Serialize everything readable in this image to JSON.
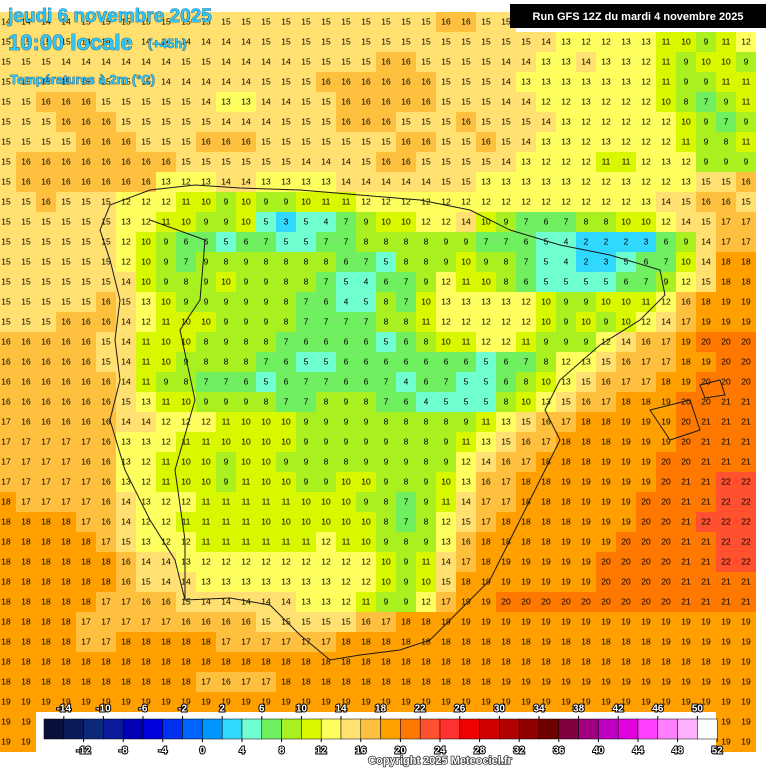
{
  "header": {
    "date": "jeudi 6 novembre 2025",
    "time": "10:00 locale",
    "lead": "(+45h)",
    "variable": "Températures à 2m (°C)",
    "run": "Run GFS 12Z du mardi 4 novembre 2025"
  },
  "footer": {
    "copyright": "Copyright 2025 Meteociel.fr"
  },
  "colorbar": {
    "ticks": [
      -14,
      -12,
      -10,
      -8,
      -6,
      -4,
      -2,
      0,
      2,
      4,
      6,
      8,
      10,
      12,
      14,
      16,
      18,
      20,
      22,
      24,
      26,
      28,
      30,
      32,
      34,
      36,
      38,
      40,
      42,
      44,
      46,
      48,
      50,
      52
    ],
    "colors": [
      "#0a0f3a",
      "#0a1a5a",
      "#0c2878",
      "#0a1a9a",
      "#0000b4",
      "#0000dc",
      "#0030f0",
      "#0064ff",
      "#0096ff",
      "#30d8ff",
      "#70ffd0",
      "#70f060",
      "#a8f020",
      "#d8f800",
      "#ffff60",
      "#ffe070",
      "#ffc040",
      "#ffa000",
      "#ff7800",
      "#ff5030",
      "#ff3030",
      "#f00000",
      "#d00000",
      "#b00000",
      "#900000",
      "#700000",
      "#800040",
      "#a00080",
      "#c000c0",
      "#e000e0",
      "#ff40ff",
      "#ff80ff",
      "#ffb0ff",
      "#ffffff"
    ]
  },
  "grid": {
    "rows": [
      [
        14,
        14,
        14,
        14,
        15,
        15,
        15,
        15,
        15,
        15,
        15,
        15,
        15,
        15,
        15,
        15,
        15,
        15,
        15,
        15,
        15,
        15,
        16,
        16,
        15,
        15,
        null,
        null,
        null,
        null,
        null,
        null,
        null,
        null,
        null,
        null,
        null,
        null
      ],
      [
        15,
        15,
        15,
        15,
        14,
        14,
        14,
        14,
        14,
        14,
        14,
        14,
        14,
        15,
        15,
        15,
        15,
        15,
        15,
        15,
        15,
        15,
        15,
        15,
        15,
        15,
        15,
        14,
        13,
        12,
        12,
        13,
        13,
        11,
        10,
        9,
        11,
        12
      ],
      [
        15,
        15,
        15,
        14,
        14,
        14,
        14,
        14,
        14,
        15,
        15,
        14,
        14,
        14,
        14,
        15,
        15,
        15,
        15,
        16,
        16,
        15,
        15,
        15,
        15,
        14,
        14,
        13,
        13,
        14,
        13,
        13,
        12,
        11,
        9,
        10,
        10,
        9
      ],
      [
        15,
        15,
        15,
        15,
        15,
        15,
        15,
        15,
        14,
        14,
        14,
        14,
        14,
        15,
        15,
        15,
        16,
        16,
        16,
        16,
        16,
        16,
        15,
        15,
        15,
        14,
        13,
        13,
        13,
        13,
        13,
        13,
        12,
        11,
        9,
        9,
        11,
        11
      ],
      [
        15,
        15,
        16,
        16,
        16,
        15,
        15,
        15,
        15,
        15,
        14,
        13,
        13,
        14,
        14,
        15,
        15,
        16,
        16,
        16,
        16,
        16,
        15,
        15,
        15,
        14,
        14,
        12,
        12,
        13,
        12,
        12,
        12,
        10,
        8,
        7,
        9,
        11
      ],
      [
        15,
        15,
        15,
        16,
        16,
        16,
        15,
        15,
        15,
        15,
        15,
        14,
        14,
        14,
        15,
        15,
        15,
        16,
        16,
        16,
        15,
        15,
        15,
        16,
        15,
        15,
        15,
        14,
        13,
        12,
        12,
        12,
        12,
        12,
        10,
        9,
        7,
        9
      ],
      [
        15,
        15,
        15,
        15,
        16,
        16,
        16,
        15,
        15,
        15,
        16,
        16,
        16,
        15,
        15,
        15,
        15,
        15,
        15,
        15,
        16,
        16,
        15,
        15,
        16,
        15,
        14,
        13,
        13,
        12,
        13,
        12,
        12,
        12,
        11,
        9,
        8,
        11
      ],
      [
        15,
        16,
        16,
        16,
        16,
        16,
        16,
        16,
        16,
        15,
        15,
        15,
        15,
        15,
        15,
        14,
        14,
        14,
        15,
        16,
        16,
        15,
        15,
        15,
        15,
        14,
        13,
        12,
        12,
        12,
        11,
        11,
        12,
        13,
        12,
        9,
        9,
        9
      ],
      [
        15,
        16,
        16,
        16,
        16,
        16,
        16,
        16,
        13,
        12,
        13,
        14,
        14,
        13,
        13,
        13,
        13,
        14,
        14,
        14,
        14,
        14,
        15,
        15,
        13,
        13,
        13,
        13,
        13,
        12,
        12,
        13,
        12,
        12,
        13,
        15,
        15,
        16
      ],
      [
        15,
        15,
        16,
        15,
        15,
        15,
        12,
        12,
        12,
        11,
        10,
        9,
        10,
        9,
        9,
        10,
        11,
        11,
        12,
        12,
        12,
        12,
        12,
        12,
        12,
        12,
        12,
        12,
        12,
        12,
        12,
        12,
        13,
        14,
        15,
        16,
        16,
        15
      ],
      [
        15,
        15,
        15,
        15,
        15,
        15,
        13,
        12,
        11,
        10,
        9,
        9,
        10,
        5,
        3,
        5,
        4,
        7,
        9,
        10,
        10,
        12,
        12,
        14,
        10,
        9,
        7,
        6,
        7,
        8,
        8,
        10,
        10,
        12,
        14,
        15,
        17,
        17
      ],
      [
        15,
        15,
        15,
        15,
        15,
        15,
        12,
        10,
        9,
        6,
        6,
        5,
        6,
        7,
        5,
        5,
        7,
        7,
        8,
        8,
        8,
        8,
        9,
        9,
        7,
        7,
        6,
        5,
        4,
        2,
        2,
        2,
        3,
        6,
        9,
        14,
        17,
        17
      ],
      [
        15,
        15,
        15,
        15,
        15,
        15,
        12,
        10,
        9,
        7,
        9,
        8,
        9,
        8,
        8,
        8,
        8,
        6,
        7,
        5,
        8,
        8,
        9,
        10,
        9,
        8,
        7,
        5,
        4,
        2,
        3,
        5,
        6,
        7,
        10,
        14,
        18,
        18
      ],
      [
        15,
        15,
        15,
        15,
        15,
        15,
        14,
        10,
        9,
        8,
        9,
        10,
        9,
        9,
        8,
        8,
        7,
        5,
        4,
        6,
        7,
        9,
        12,
        11,
        10,
        8,
        6,
        5,
        5,
        5,
        5,
        6,
        7,
        9,
        12,
        15,
        18,
        18
      ],
      [
        15,
        15,
        15,
        15,
        15,
        16,
        15,
        13,
        10,
        9,
        9,
        9,
        9,
        9,
        8,
        7,
        6,
        4,
        5,
        8,
        7,
        10,
        13,
        13,
        13,
        13,
        12,
        10,
        9,
        9,
        10,
        10,
        11,
        12,
        16,
        18,
        19,
        19
      ],
      [
        15,
        15,
        15,
        16,
        16,
        16,
        14,
        12,
        11,
        10,
        10,
        9,
        9,
        9,
        8,
        7,
        7,
        7,
        7,
        8,
        8,
        11,
        12,
        12,
        12,
        12,
        12,
        10,
        9,
        10,
        9,
        10,
        12,
        14,
        17,
        19,
        19,
        19
      ],
      [
        16,
        16,
        16,
        16,
        16,
        15,
        14,
        11,
        10,
        10,
        8,
        9,
        8,
        8,
        7,
        6,
        6,
        6,
        6,
        5,
        6,
        8,
        10,
        11,
        12,
        12,
        11,
        9,
        9,
        9,
        12,
        14,
        16,
        17,
        19,
        20,
        20,
        20
      ],
      [
        16,
        16,
        16,
        16,
        16,
        15,
        14,
        11,
        10,
        9,
        8,
        8,
        8,
        7,
        6,
        5,
        5,
        6,
        6,
        6,
        6,
        6,
        6,
        6,
        5,
        6,
        7,
        8,
        12,
        13,
        15,
        16,
        17,
        17,
        18,
        19,
        20,
        20
      ],
      [
        16,
        16,
        16,
        16,
        16,
        16,
        14,
        11,
        9,
        8,
        7,
        7,
        6,
        5,
        6,
        7,
        7,
        6,
        6,
        7,
        4,
        6,
        7,
        5,
        5,
        6,
        8,
        10,
        13,
        15,
        16,
        17,
        17,
        18,
        19,
        20,
        20,
        20
      ],
      [
        16,
        16,
        16,
        16,
        16,
        16,
        15,
        13,
        11,
        10,
        9,
        9,
        9,
        8,
        7,
        7,
        8,
        9,
        8,
        7,
        6,
        4,
        5,
        5,
        5,
        8,
        10,
        13,
        15,
        16,
        17,
        18,
        18,
        19,
        20,
        20,
        21,
        21
      ],
      [
        17,
        16,
        16,
        16,
        16,
        16,
        14,
        14,
        12,
        12,
        12,
        11,
        10,
        10,
        10,
        9,
        9,
        9,
        9,
        8,
        8,
        8,
        8,
        9,
        11,
        13,
        15,
        16,
        17,
        18,
        18,
        19,
        19,
        19,
        20,
        21,
        21,
        21
      ],
      [
        17,
        17,
        17,
        17,
        17,
        16,
        13,
        13,
        12,
        11,
        11,
        10,
        10,
        10,
        10,
        9,
        9,
        9,
        9,
        9,
        8,
        8,
        9,
        11,
        13,
        15,
        16,
        17,
        18,
        18,
        18,
        19,
        19,
        19,
        20,
        21,
        21,
        21
      ],
      [
        17,
        17,
        17,
        17,
        16,
        16,
        13,
        12,
        11,
        10,
        10,
        9,
        10,
        10,
        9,
        9,
        8,
        8,
        9,
        9,
        9,
        8,
        9,
        12,
        14,
        16,
        17,
        18,
        18,
        18,
        19,
        19,
        19,
        20,
        20,
        21,
        21,
        21
      ],
      [
        17,
        17,
        17,
        17,
        17,
        16,
        13,
        12,
        11,
        10,
        10,
        9,
        11,
        10,
        10,
        9,
        9,
        10,
        10,
        9,
        8,
        9,
        10,
        13,
        16,
        17,
        18,
        18,
        19,
        19,
        19,
        19,
        19,
        20,
        21,
        21,
        22,
        22
      ],
      [
        18,
        17,
        17,
        17,
        17,
        16,
        14,
        13,
        12,
        12,
        11,
        11,
        11,
        11,
        11,
        10,
        10,
        10,
        9,
        8,
        7,
        9,
        11,
        14,
        17,
        17,
        18,
        18,
        18,
        19,
        19,
        19,
        20,
        20,
        21,
        21,
        22,
        22
      ],
      [
        18,
        18,
        18,
        18,
        17,
        16,
        14,
        12,
        12,
        11,
        11,
        11,
        11,
        10,
        10,
        10,
        10,
        10,
        10,
        8,
        7,
        8,
        12,
        15,
        17,
        18,
        18,
        18,
        18,
        19,
        19,
        19,
        20,
        20,
        21,
        22,
        22,
        22
      ],
      [
        18,
        18,
        18,
        18,
        18,
        17,
        15,
        13,
        12,
        12,
        11,
        11,
        11,
        11,
        11,
        11,
        12,
        11,
        10,
        9,
        8,
        9,
        13,
        16,
        18,
        18,
        18,
        18,
        19,
        19,
        19,
        20,
        20,
        20,
        21,
        21,
        22,
        22
      ],
      [
        18,
        18,
        18,
        18,
        18,
        18,
        16,
        14,
        14,
        13,
        12,
        12,
        12,
        12,
        12,
        12,
        12,
        12,
        12,
        10,
        9,
        11,
        14,
        17,
        18,
        19,
        19,
        19,
        19,
        19,
        20,
        20,
        20,
        20,
        21,
        21,
        22,
        22
      ],
      [
        18,
        18,
        18,
        18,
        18,
        18,
        16,
        15,
        14,
        14,
        13,
        13,
        13,
        13,
        13,
        13,
        13,
        12,
        12,
        10,
        9,
        10,
        15,
        18,
        19,
        19,
        19,
        19,
        19,
        19,
        20,
        20,
        20,
        20,
        21,
        21,
        21,
        21
      ],
      [
        18,
        18,
        18,
        18,
        18,
        17,
        17,
        16,
        16,
        15,
        14,
        14,
        14,
        14,
        14,
        13,
        13,
        12,
        11,
        9,
        9,
        12,
        17,
        19,
        19,
        20,
        20,
        20,
        20,
        20,
        20,
        20,
        20,
        20,
        21,
        21,
        21,
        21
      ],
      [
        18,
        18,
        18,
        18,
        17,
        17,
        17,
        17,
        17,
        16,
        16,
        16,
        16,
        15,
        15,
        15,
        15,
        15,
        16,
        17,
        18,
        18,
        19,
        19,
        19,
        19,
        19,
        19,
        19,
        19,
        19,
        19,
        19,
        19,
        19,
        19,
        19,
        19
      ],
      [
        18,
        18,
        18,
        18,
        17,
        17,
        18,
        18,
        18,
        18,
        18,
        17,
        17,
        17,
        17,
        17,
        17,
        18,
        18,
        18,
        18,
        18,
        18,
        18,
        18,
        18,
        18,
        19,
        18,
        18,
        18,
        18,
        18,
        19,
        19,
        19,
        19,
        19
      ],
      [
        18,
        18,
        18,
        18,
        18,
        18,
        18,
        18,
        18,
        18,
        18,
        18,
        18,
        18,
        18,
        18,
        18,
        18,
        18,
        18,
        18,
        18,
        18,
        18,
        18,
        18,
        18,
        18,
        18,
        18,
        18,
        18,
        18,
        18,
        18,
        18,
        19,
        19
      ],
      [
        18,
        18,
        18,
        18,
        18,
        18,
        18,
        18,
        18,
        18,
        17,
        16,
        17,
        17,
        18,
        18,
        18,
        18,
        18,
        18,
        18,
        18,
        18,
        18,
        18,
        19,
        19,
        19,
        19,
        19,
        19,
        19,
        19,
        19,
        19,
        19,
        19,
        19
      ],
      [
        19,
        19,
        19,
        19,
        19,
        19,
        19,
        19,
        19,
        19,
        19,
        19,
        19,
        19,
        19,
        19,
        19,
        19,
        19,
        19,
        19,
        19,
        19,
        19,
        19,
        19,
        19,
        19,
        19,
        19,
        19,
        19,
        19,
        19,
        19,
        19,
        19,
        19
      ],
      [
        19,
        19,
        null,
        null,
        null,
        null,
        null,
        null,
        null,
        null,
        null,
        null,
        null,
        null,
        null,
        null,
        null,
        null,
        null,
        null,
        null,
        null,
        null,
        null,
        null,
        null,
        null,
        null,
        null,
        null,
        null,
        null,
        null,
        null,
        null,
        null,
        19,
        19
      ],
      [
        19,
        19,
        null,
        null,
        null,
        null,
        null,
        null,
        null,
        null,
        null,
        null,
        null,
        null,
        null,
        null,
        null,
        null,
        null,
        null,
        null,
        null,
        null,
        null,
        null,
        null,
        null,
        null,
        null,
        null,
        null,
        null,
        null,
        null,
        null,
        null,
        19,
        19
      ]
    ]
  }
}
